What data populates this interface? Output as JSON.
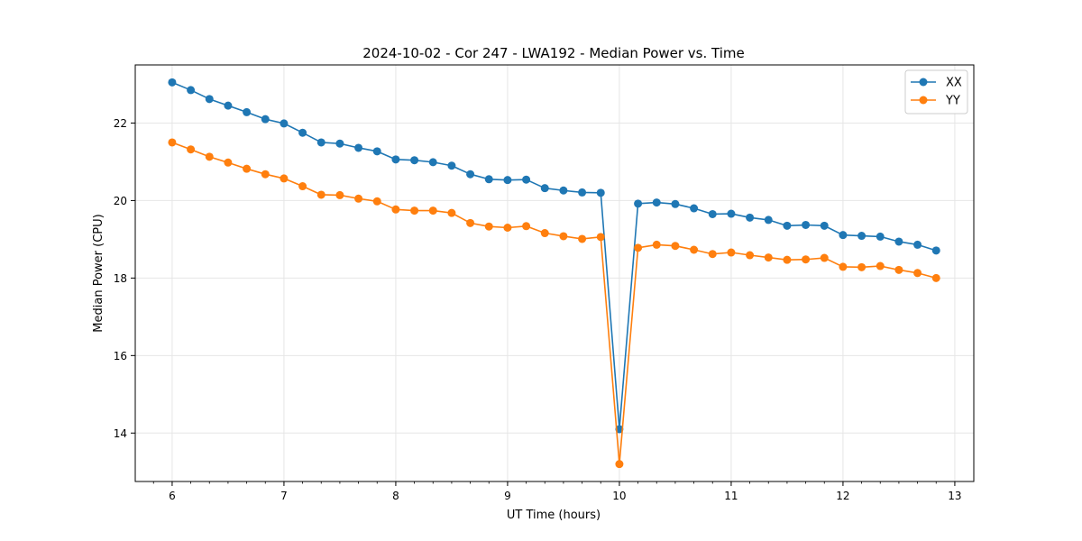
{
  "chart_data": {
    "type": "line",
    "title": "2024-10-02 - Cor 247 - LWA192 - Median Power vs. Time",
    "xlabel": "UT Time (hours)",
    "ylabel": "Median Power (CPU)",
    "xlim": [
      5.67,
      13.17
    ],
    "ylim": [
      12.75,
      23.5
    ],
    "xticks": [
      "6",
      "7",
      "8",
      "9",
      "10",
      "11",
      "12",
      "13"
    ],
    "xtick_values": [
      6,
      7,
      8,
      9,
      10,
      11,
      12,
      13
    ],
    "yticks": [
      "14",
      "16",
      "18",
      "20",
      "22"
    ],
    "ytick_values": [
      14,
      16,
      18,
      20,
      22
    ],
    "grid": true,
    "legend_position": "top-right",
    "x": [
      6.0,
      6.1667,
      6.3333,
      6.5,
      6.6667,
      6.8333,
      7.0,
      7.1667,
      7.3333,
      7.5,
      7.6667,
      7.8333,
      8.0,
      8.1667,
      8.3333,
      8.5,
      8.6667,
      8.8333,
      9.0,
      9.1667,
      9.3333,
      9.5,
      9.6667,
      9.8333,
      10.0,
      10.1667,
      10.3333,
      10.5,
      10.6667,
      10.8333,
      11.0,
      11.1667,
      11.3333,
      11.5,
      11.6667,
      11.8333,
      12.0,
      12.1667,
      12.3333,
      12.5,
      12.6667,
      12.8333
    ],
    "series": [
      {
        "name": "XX",
        "color": "#1f77b4",
        "values": [
          23.05,
          22.85,
          22.62,
          22.45,
          22.28,
          22.1,
          21.99,
          21.75,
          21.5,
          21.47,
          21.36,
          21.27,
          21.06,
          21.04,
          20.99,
          20.9,
          20.68,
          20.55,
          20.53,
          20.54,
          20.32,
          20.26,
          20.21,
          20.2,
          14.1,
          19.92,
          19.95,
          19.91,
          19.8,
          19.65,
          19.66,
          19.56,
          19.5,
          19.35,
          19.37,
          19.35,
          19.11,
          19.09,
          19.07,
          18.94,
          18.86,
          18.71
        ]
      },
      {
        "name": "YY",
        "color": "#ff7f0e",
        "values": [
          21.5,
          21.32,
          21.13,
          20.98,
          20.82,
          20.68,
          20.57,
          20.37,
          20.15,
          20.14,
          20.05,
          19.98,
          19.77,
          19.74,
          19.74,
          19.68,
          19.42,
          19.33,
          19.3,
          19.34,
          19.16,
          19.08,
          19.01,
          19.06,
          13.2,
          18.78,
          18.86,
          18.83,
          18.73,
          18.62,
          18.66,
          18.59,
          18.53,
          18.47,
          18.48,
          18.52,
          18.29,
          18.28,
          18.31,
          18.21,
          18.13,
          18.0
        ]
      }
    ]
  }
}
